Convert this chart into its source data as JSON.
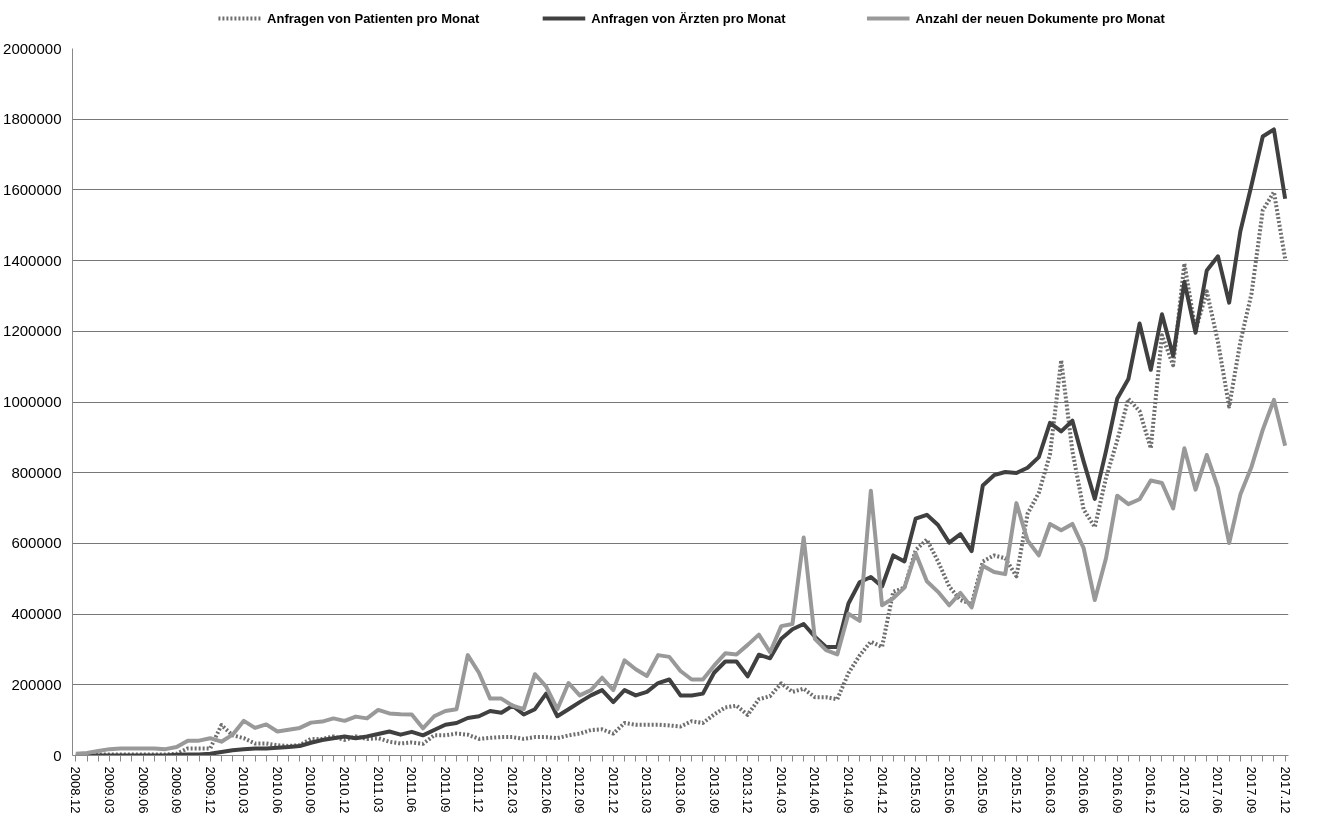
{
  "chart_data": {
    "type": "line",
    "categories": [
      "2008.12",
      null,
      null,
      "2009.03",
      null,
      null,
      "2009.06",
      null,
      null,
      "2009.09",
      null,
      null,
      "2009.12",
      null,
      null,
      "2010.03",
      null,
      null,
      "2010.06",
      null,
      null,
      "2010.09",
      null,
      null,
      "2010.12",
      null,
      null,
      "2011.03",
      null,
      null,
      "2011.06",
      null,
      null,
      "2011.09",
      null,
      null,
      "2011.12",
      null,
      null,
      "2012.03",
      null,
      null,
      "2012.06",
      null,
      null,
      "2012.09",
      null,
      null,
      "2012.12",
      null,
      null,
      "2013.03",
      null,
      null,
      "2013.06",
      null,
      null,
      "2013.09",
      null,
      null,
      "2013.12",
      null,
      null,
      "2014.03",
      null,
      null,
      "2014.06",
      null,
      null,
      "2014.09",
      null,
      null,
      "2014.12",
      null,
      null,
      "2015.03",
      null,
      null,
      "2015.06",
      null,
      null,
      "2015.09",
      null,
      null,
      "2015.12",
      null,
      null,
      "2016.03",
      null,
      null,
      "2016.06",
      null,
      null,
      "2016.09",
      null,
      null,
      "2016.12",
      null,
      null,
      "2017.03",
      null,
      null,
      "2017.06",
      null,
      null,
      "2017.09",
      null,
      null,
      "2017.12"
    ],
    "series": [
      {
        "name": "Anfragen von Patienten pro Monat",
        "color": "#6e6e6e",
        "line_style": "dotted",
        "values": [
          0,
          2000,
          3000,
          3000,
          3000,
          3000,
          3000,
          3000,
          3000,
          5000,
          20000,
          20000,
          20000,
          86000,
          57000,
          49000,
          34000,
          34000,
          29000,
          27000,
          29000,
          47000,
          47000,
          54000,
          44000,
          54000,
          47000,
          49000,
          39000,
          34000,
          37000,
          33000,
          57000,
          57000,
          62000,
          59000,
          47000,
          50000,
          52000,
          52000,
          47000,
          52000,
          52000,
          49000,
          57000,
          62000,
          72000,
          74000,
          62000,
          92000,
          87000,
          87000,
          87000,
          85000,
          82000,
          97000,
          92000,
          116000,
          136000,
          141000,
          115000,
          159000,
          168000,
          204000,
          180000,
          189000,
          165000,
          165000,
          159000,
          233000,
          283000,
          322000,
          307000,
          463000,
          475000,
          581000,
          611000,
          549000,
          478000,
          440000,
          428000,
          549000,
          566000,
          558000,
          507000,
          684000,
          743000,
          852000,
          1118000,
          861000,
          696000,
          646000,
          785000,
          891000,
          1009000,
          974000,
          869000,
          1189000,
          1104000,
          1392000,
          1202000,
          1313000,
          1170000,
          987000,
          1170000,
          1307000,
          1542000,
          1594000,
          1405000
        ]
      },
      {
        "name": "Anfragen von Ärzten pro Monat",
        "color": "#404040",
        "line_style": "solid",
        "values": [
          0,
          0,
          0,
          0,
          0,
          0,
          0,
          0,
          0,
          2000,
          3000,
          3000,
          5000,
          10000,
          15000,
          18000,
          20000,
          20000,
          22000,
          24000,
          27000,
          36000,
          44000,
          49000,
          54000,
          49000,
          54000,
          61000,
          68000,
          59000,
          67000,
          57000,
          72000,
          87000,
          92000,
          106000,
          111000,
          126000,
          121000,
          141000,
          116000,
          131000,
          175000,
          111000,
          131000,
          151000,
          170000,
          185000,
          151000,
          185000,
          170000,
          180000,
          205000,
          215000,
          170000,
          170000,
          175000,
          234000,
          266000,
          266000,
          224000,
          285000,
          275000,
          330000,
          357000,
          372000,
          336000,
          307000,
          307000,
          430000,
          490000,
          505000,
          478000,
          566000,
          549000,
          670000,
          681000,
          652000,
          602000,
          626000,
          578000,
          764000,
          793000,
          802000,
          799000,
          814000,
          844000,
          941000,
          917000,
          947000,
          832000,
          726000,
          861000,
          1009000,
          1065000,
          1222000,
          1091000,
          1248000,
          1131000,
          1340000,
          1196000,
          1372000,
          1412000,
          1281000,
          1483000,
          1614000,
          1751000,
          1771000,
          1575000
        ]
      },
      {
        "name": "Anzahl der neuen Dokumente pro Monat",
        "color": "#999999",
        "line_style": "solid",
        "values": [
          5000,
          7000,
          13000,
          18000,
          20000,
          20000,
          20000,
          20000,
          18000,
          24000,
          42000,
          42000,
          49000,
          39000,
          59000,
          98000,
          78000,
          88000,
          68000,
          73000,
          78000,
          93000,
          96000,
          105000,
          98000,
          110000,
          105000,
          129000,
          119000,
          117000,
          116000,
          77000,
          111000,
          126000,
          131000,
          284000,
          234000,
          161000,
          161000,
          141000,
          131000,
          230000,
          195000,
          131000,
          205000,
          170000,
          185000,
          220000,
          185000,
          269000,
          244000,
          225000,
          284000,
          279000,
          239000,
          215000,
          215000,
          254000,
          289000,
          286000,
          313000,
          342000,
          292000,
          366000,
          372000,
          617000,
          330000,
          298000,
          286000,
          401000,
          381000,
          749000,
          425000,
          445000,
          475000,
          572000,
          493000,
          463000,
          425000,
          460000,
          419000,
          537000,
          519000,
          513000,
          714000,
          608000,
          566000,
          655000,
          637000,
          655000,
          587000,
          440000,
          558000,
          735000,
          711000,
          725000,
          778000,
          771000,
          699000,
          869000,
          752000,
          850000,
          758000,
          601000,
          738000,
          817000,
          921000,
          1006000,
          876000
        ]
      }
    ],
    "ylim": [
      0,
      2000000
    ],
    "yticks": [
      0,
      200000,
      400000,
      600000,
      800000,
      1000000,
      1200000,
      1400000,
      1600000,
      1800000,
      2000000
    ],
    "grid": "y",
    "legend": "top",
    "marker": "none"
  }
}
